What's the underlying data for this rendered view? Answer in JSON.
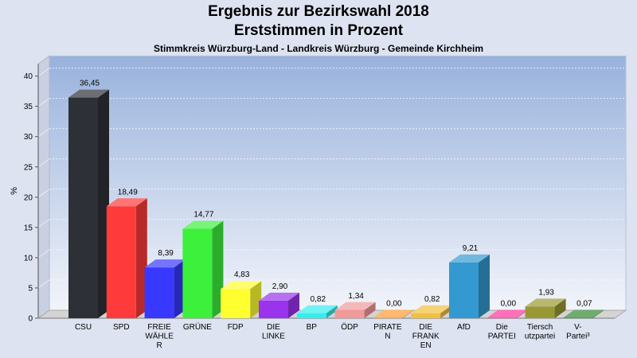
{
  "chart_data": {
    "type": "bar",
    "title": "Ergebnis zur Bezirkswahl 2018",
    "subtitle": "Erststimmen in Prozent",
    "subsubtitle": "Stimmkreis Würzburg-Land - Landkreis Würzburg - Gemeinde Kirchheim",
    "ylabel": "%",
    "xlabel": "",
    "ylim": [
      0,
      42
    ],
    "yticks": [
      0,
      5,
      10,
      15,
      20,
      25,
      30,
      35,
      40
    ],
    "grid": true,
    "categories": [
      [
        "CSU"
      ],
      [
        "SPD"
      ],
      [
        "FREIE",
        "WÄHLE",
        "R"
      ],
      [
        "GRÜNE"
      ],
      [
        "FDP"
      ],
      [
        "DIE",
        "LINKE"
      ],
      [
        "BP"
      ],
      [
        "ÖDP"
      ],
      [
        "PIRATE",
        "N"
      ],
      [
        "DIE",
        "FRANK",
        "EN"
      ],
      [
        "AfD"
      ],
      [
        "Die",
        "PARTEI"
      ],
      [
        "Tiersch",
        "utzpartei"
      ],
      [
        "V-",
        "Partei³"
      ]
    ],
    "values": [
      36.45,
      18.49,
      8.39,
      14.77,
      4.83,
      2.9,
      0.82,
      1.34,
      0.0,
      0.82,
      9.21,
      0.0,
      1.93,
      0.07
    ],
    "value_labels": [
      "36,45",
      "18,49",
      "8,39",
      "14,77",
      "4,83",
      "2,90",
      "0,82",
      "1,34",
      "0,00",
      "0,82",
      "9,21",
      "0,00",
      "1,93",
      "0,07"
    ],
    "colors": [
      "#2e3038",
      "#ff3a3a",
      "#3838ff",
      "#3cf03c",
      "#ffff30",
      "#9933ee",
      "#33eeee",
      "#f09a9a",
      "#ff9a30",
      "#f0c040",
      "#3399d0",
      "#ff3399",
      "#999933",
      "#338833"
    ]
  }
}
